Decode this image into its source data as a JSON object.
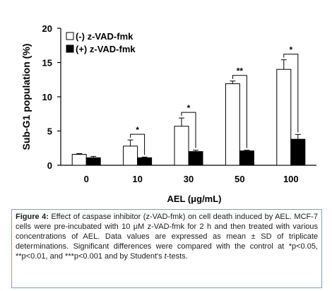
{
  "chart_data": {
    "type": "bar",
    "xlabel": "AEL (μg/mL)",
    "ylabel": "Sub-G1 population (%)",
    "ylim": [
      0,
      20
    ],
    "yticks": [
      0,
      5,
      10,
      15,
      20
    ],
    "categories": [
      "0",
      "10",
      "30",
      "50",
      "100"
    ],
    "legend_position": "top-left",
    "grid": false,
    "series": [
      {
        "name": "(-) z-VAD-fmk",
        "fill": "#ffffff",
        "values": [
          1.6,
          2.8,
          5.7,
          11.9,
          14.0
        ],
        "errors": [
          0.1,
          0.9,
          1.2,
          0.4,
          1.4
        ]
      },
      {
        "name": "(+) z-VAD-fmk",
        "fill": "#000000",
        "values": [
          1.1,
          1.1,
          2.0,
          2.1,
          3.8
        ],
        "errors": [
          0.2,
          0.1,
          0.2,
          0.1,
          0.7
        ]
      }
    ],
    "significance": [
      {
        "category": "10",
        "label": "*"
      },
      {
        "category": "30",
        "label": "*"
      },
      {
        "category": "50",
        "label": "**"
      },
      {
        "category": "100",
        "label": "*"
      }
    ]
  },
  "caption": {
    "label": "Figure 4:",
    "text_1": " Effect of caspase inhibitor (z-VAD-fmk) on cell death induced by AEL. MCF-7 cells were pre-incubated with 10 μM z-VAD-fmk for 2 h and then treated with various concentrations of AEL. Data values are expressed as mean ± SD of triplicate determinations. Significant differences were compared with the control at *p<0.05, **p<0.01, and ***p<0.001 and by Student's ",
    "t_symbol": "t",
    "text_2": "-tests."
  },
  "colors": {
    "caption_border": "#6ea6c8",
    "axis": "#000000"
  }
}
